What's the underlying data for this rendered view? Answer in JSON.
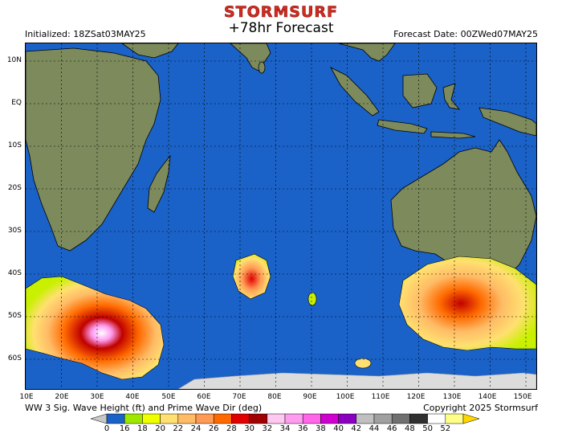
{
  "brand": "STORMSURF",
  "header": {
    "initialized": "Initialized: 18ZSat03MAY25",
    "title": "+78hr Forecast",
    "forecast_date": "Forecast Date: 00ZWed07MAY25"
  },
  "map": {
    "lat_labels": [
      "10N",
      "EQ",
      "10S",
      "20S",
      "30S",
      "40S",
      "50S",
      "60S"
    ],
    "lon_labels": [
      "10E",
      "20E",
      "30E",
      "40E",
      "50E",
      "60E",
      "70E",
      "80E",
      "90E",
      "100E",
      "110E",
      "120E",
      "130E",
      "140E",
      "150E"
    ],
    "ocean_color": "#1a62c8",
    "land_color": "#7d8a5c"
  },
  "footer": {
    "caption": "WW 3 Sig. Wave Height (ft) and Prime Wave Dir (deg)",
    "copyright": "Copyright 2025 Stormsurf"
  },
  "legend": {
    "values": [
      "0",
      "16",
      "18",
      "20",
      "22",
      "24",
      "26",
      "28",
      "30",
      "32",
      "34",
      "36",
      "38",
      "40",
      "42",
      "44",
      "46",
      "48",
      "50",
      "52"
    ],
    "colors": [
      "#1a62c8",
      "#9ee800",
      "#f0ff00",
      "#ffe070",
      "#ffbb66",
      "#ff9a55",
      "#ff6a00",
      "#e00000",
      "#a00000",
      "#ffc8f0",
      "#ff9cf0",
      "#ff66e8",
      "#d000d0",
      "#8a00c0",
      "#c0c0c0",
      "#a0a0a0",
      "#707070",
      "#303030",
      "#ffffff",
      "#ffff88"
    ]
  }
}
